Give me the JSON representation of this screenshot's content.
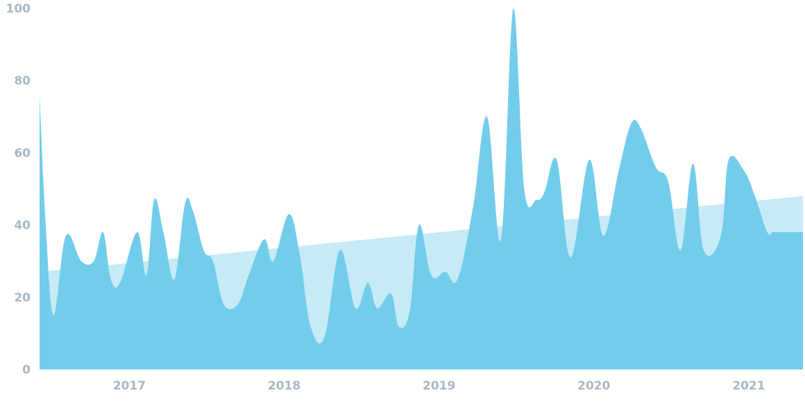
{
  "chart_data": {
    "type": "area",
    "title": "",
    "xlabel": "",
    "ylabel": "",
    "xlim": [
      2016.42,
      2021.35
    ],
    "ylim": [
      0,
      100
    ],
    "y_ticks": [
      0,
      20,
      40,
      60,
      80,
      100
    ],
    "x_ticks": [
      2017,
      2018,
      2019,
      2020,
      2021
    ],
    "y_tick_labels": [
      "0",
      "20",
      "40",
      "60",
      "80",
      "100"
    ],
    "x_tick_labels": [
      "2017",
      "2018",
      "2019",
      "2020",
      "2021"
    ],
    "grid": false,
    "legend": "none",
    "series": [
      {
        "kind": "trend",
        "color": "#c6eaf6",
        "x": [
          2016.42,
          2021.35
        ],
        "y": [
          27,
          48
        ]
      },
      {
        "kind": "values",
        "color": "#72cdea",
        "x": [
          2016.42,
          2016.46,
          2016.51,
          2016.59,
          2016.69,
          2016.77,
          2016.83,
          2016.88,
          2016.94,
          2017.05,
          2017.11,
          2017.16,
          2017.22,
          2017.29,
          2017.36,
          2017.41,
          2017.48,
          2017.54,
          2017.61,
          2017.7,
          2017.77,
          2017.87,
          2017.93,
          2018.03,
          2018.1,
          2018.17,
          2018.26,
          2018.36,
          2018.46,
          2018.54,
          2018.6,
          2018.69,
          2018.74,
          2018.81,
          2018.87,
          2018.95,
          2019.04,
          2019.12,
          2019.22,
          2019.31,
          2019.4,
          2019.48,
          2019.55,
          2019.63,
          2019.68,
          2019.76,
          2019.85,
          2019.97,
          2020.06,
          2020.16,
          2020.24,
          2020.3,
          2020.4,
          2020.48,
          2020.56,
          2020.64,
          2020.71,
          2020.82,
          2020.87,
          2020.97,
          2021.04,
          2021.12,
          2021.16,
          2021.26,
          2021.35
        ],
        "y": [
          76,
          40,
          15,
          37,
          30,
          30,
          38,
          25,
          24,
          38,
          26,
          47,
          38,
          25,
          46,
          44,
          33,
          30,
          18,
          18,
          26,
          36,
          30,
          43,
          32,
          12,
          9,
          33,
          17,
          24,
          17,
          21,
          12,
          16,
          40,
          26,
          27,
          25,
          45,
          70,
          36,
          100,
          50,
          47,
          49,
          58,
          31,
          58,
          37,
          55,
          68,
          67,
          56,
          52,
          33,
          57,
          33,
          37,
          58,
          55,
          48,
          38,
          38,
          38,
          38
        ]
      }
    ]
  }
}
